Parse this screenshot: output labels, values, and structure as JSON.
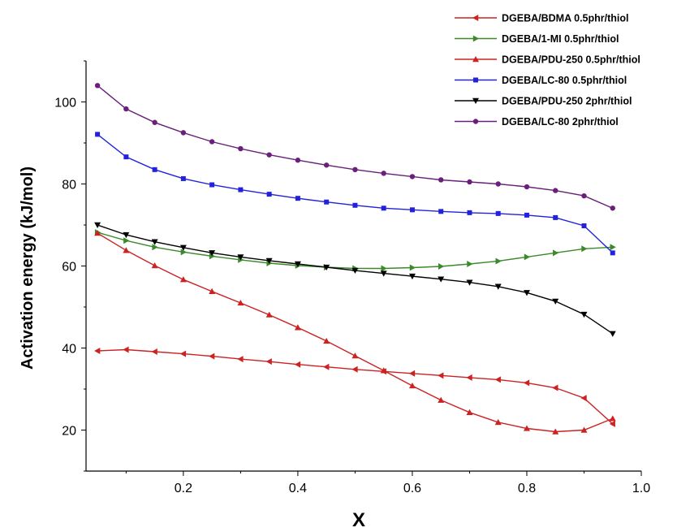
{
  "chart_data": {
    "type": "line",
    "xlabel": "X",
    "ylabel": "Activation energy  (kJ/mol)",
    "xlim": [
      0.03,
      1.0
    ],
    "ylim": [
      10,
      110
    ],
    "xticks": [
      0.2,
      0.4,
      0.6,
      0.8,
      1.0
    ],
    "xtick_labels": [
      "0.2",
      "0.4",
      "0.6",
      "0.8",
      "1.0"
    ],
    "yticks": [
      20,
      40,
      60,
      80,
      100
    ],
    "ytick_labels": [
      "20",
      "40",
      "60",
      "80",
      "100"
    ],
    "grid": false,
    "legend_position": "top-right",
    "x": [
      0.05,
      0.1,
      0.15,
      0.2,
      0.25,
      0.3,
      0.35,
      0.4,
      0.45,
      0.5,
      0.55,
      0.6,
      0.65,
      0.7,
      0.75,
      0.8,
      0.85,
      0.9,
      0.95
    ],
    "series": [
      {
        "name": "DGEBA/BDMA 0.5phr/thiol",
        "color": "#cc2222",
        "marker": "triangle-left",
        "values": [
          39.3,
          39.6,
          39.1,
          38.6,
          38.0,
          37.3,
          36.7,
          36.0,
          35.4,
          34.8,
          34.3,
          33.8,
          33.3,
          32.8,
          32.3,
          31.5,
          30.3,
          27.8,
          21.5
        ]
      },
      {
        "name": "DGEBA/1-MI 0.5phr/thiol",
        "color": "#3a8a2a",
        "marker": "triangle-right",
        "values": [
          68.2,
          66.2,
          64.6,
          63.4,
          62.4,
          61.5,
          60.7,
          60.1,
          59.7,
          59.4,
          59.4,
          59.6,
          59.9,
          60.5,
          61.2,
          62.2,
          63.2,
          64.2,
          64.6
        ]
      },
      {
        "name": "DGEBA/PDU-250 0.5phr/thiol",
        "color": "#cc2222",
        "marker": "triangle-up",
        "values": [
          68.0,
          63.8,
          60.1,
          56.7,
          53.8,
          51.0,
          48.1,
          45.0,
          41.7,
          38.1,
          34.5,
          30.8,
          27.3,
          24.3,
          21.9,
          20.4,
          19.6,
          20.0,
          22.8
        ]
      },
      {
        "name": "DGEBA/LC-80 0.5phr/thiol",
        "color": "#2222dd",
        "marker": "square",
        "values": [
          92.1,
          86.6,
          83.5,
          81.3,
          79.8,
          78.6,
          77.5,
          76.5,
          75.6,
          74.8,
          74.1,
          73.7,
          73.3,
          73.0,
          72.8,
          72.4,
          71.8,
          69.8,
          63.2
        ]
      },
      {
        "name": "DGEBA/PDU-250 2phr/thiol",
        "color": "#000000",
        "marker": "triangle-down",
        "values": [
          70.0,
          67.6,
          65.9,
          64.5,
          63.2,
          62.2,
          61.3,
          60.5,
          59.7,
          58.9,
          58.2,
          57.5,
          56.8,
          56.0,
          55.0,
          53.5,
          51.4,
          48.2,
          43.5
        ]
      },
      {
        "name": "DGEBA/LC-80 2phr/thiol",
        "color": "#6a1f7a",
        "marker": "circle",
        "values": [
          104.0,
          98.3,
          95.0,
          92.5,
          90.3,
          88.6,
          87.1,
          85.8,
          84.6,
          83.5,
          82.6,
          81.8,
          81.0,
          80.5,
          80.0,
          79.3,
          78.4,
          77.1,
          74.1
        ]
      }
    ]
  }
}
